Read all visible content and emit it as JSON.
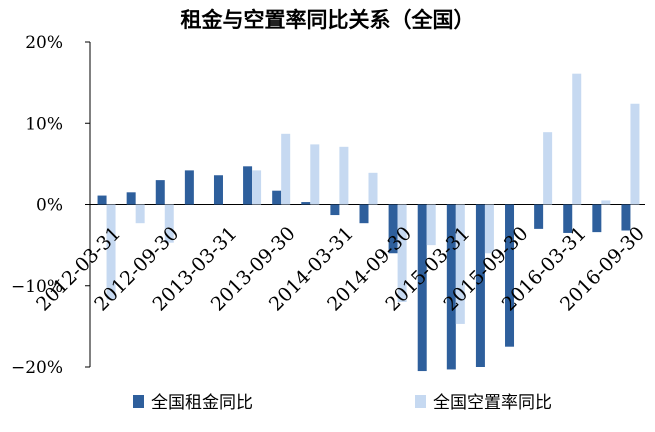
{
  "chart_data": {
    "type": "bar",
    "title": "租金与空置率同比关系（全国）",
    "xlabel": "",
    "ylabel": "",
    "ylim": [
      -0.2,
      0.2
    ],
    "yticks": [
      {
        "value": 0.2,
        "label": "20%"
      },
      {
        "value": 0.1,
        "label": "10%"
      },
      {
        "value": 0.0,
        "label": "0%"
      },
      {
        "value": -0.1,
        "label": "−10%"
      },
      {
        "value": -0.2,
        "label": "−20%"
      }
    ],
    "categories": [
      "2012-03-31",
      "2012-06-30",
      "2012-09-30",
      "2012-12-31",
      "2013-03-31",
      "2013-06-30",
      "2013-09-30",
      "2013-12-31",
      "2014-03-31",
      "2014-06-30",
      "2014-09-30",
      "2014-12-31",
      "2015-03-31",
      "2015-06-30",
      "2015-09-30",
      "2015-12-31",
      "2016-03-31",
      "2016-06-30",
      "2016-09-30"
    ],
    "tick_labels": [
      "2012-03-31",
      "2012-09-30",
      "2013-03-31",
      "2013-09-30",
      "2014-03-31",
      "2014-09-30",
      "2015-03-31",
      "2015-09-30",
      "2016-03-31",
      "2016-09-30"
    ],
    "series": [
      {
        "name": "全国租金同比",
        "color": "#2e5f9c",
        "values": [
          0.011,
          0.015,
          0.03,
          0.042,
          0.036,
          0.047,
          0.017,
          0.003,
          -0.013,
          -0.023,
          -0.06,
          -0.205,
          -0.203,
          -0.2,
          -0.175,
          -0.03,
          -0.035,
          -0.034,
          -0.032
        ]
      },
      {
        "name": "全国空置率同比",
        "color": "#c6d9f1",
        "values": [
          -0.117,
          -0.023,
          -0.047,
          0.0,
          0.0,
          0.042,
          0.087,
          0.074,
          0.071,
          0.039,
          -0.12,
          -0.05,
          -0.147,
          -0.06,
          0.0,
          0.089,
          0.161,
          0.005,
          0.124
        ]
      }
    ],
    "grid": false,
    "legend": "bottom"
  }
}
